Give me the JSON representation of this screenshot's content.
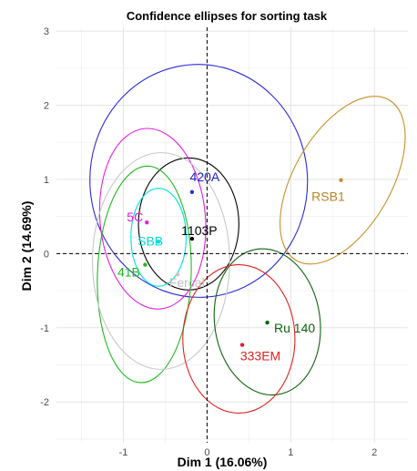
{
  "chart_data": {
    "type": "scatter",
    "title": "Confidence ellipses for sorting task",
    "xlabel": "Dim 1 (16.06%)",
    "ylabel": "Dim 2 (14.69%)",
    "xlim": [
      -1.8,
      2.4
    ],
    "ylim": [
      -2.55,
      3.05
    ],
    "xticks": [
      -1,
      0,
      1,
      2
    ],
    "yticks": [
      -2,
      -1,
      0,
      1,
      2,
      3
    ],
    "xtick_labels": [
      "-1",
      "0",
      "1",
      "2"
    ],
    "ytick_labels": [
      "-2",
      "-1",
      "0",
      "1",
      "2",
      "3"
    ],
    "grid": true,
    "reference_lines": {
      "x": 0,
      "y": 0,
      "style": "dashed"
    },
    "series": [
      {
        "name": "420A",
        "color": "#2b2bd6",
        "label_color": "#2020c0",
        "x": -0.18,
        "y": 0.83,
        "ellipse": {
          "cx": -0.1,
          "cy": 0.98,
          "rx": 1.3,
          "ry": 1.57,
          "rotation": -3
        }
      },
      {
        "name": "1103P",
        "color": "#000000",
        "label_color": "#000000",
        "x": -0.18,
        "y": 0.2,
        "ellipse": {
          "cx": -0.22,
          "cy": 0.4,
          "rx": 0.6,
          "ry": 0.89,
          "rotation": 0
        }
      },
      {
        "name": "5C",
        "color": "#e020e0",
        "label_color": "#e020e0",
        "x": -0.72,
        "y": 0.42,
        "ellipse": {
          "cx": -0.65,
          "cy": 0.47,
          "rx": 0.63,
          "ry": 1.22,
          "rotation": -5
        }
      },
      {
        "name": "SBB",
        "color": "#00e0e0",
        "label_color": "#00d8d8",
        "x": -0.58,
        "y": 0.16,
        "ellipse": {
          "cx": -0.58,
          "cy": 0.22,
          "rx": 0.33,
          "ry": 0.66,
          "rotation": 0
        }
      },
      {
        "name": "41B",
        "color": "#22b822",
        "label_color": "#22b822",
        "x": -0.74,
        "y": -0.15,
        "ellipse": {
          "cx": -0.75,
          "cy": -0.28,
          "rx": 0.56,
          "ry": 1.46,
          "rotation": 2
        }
      },
      {
        "name": "Fercal",
        "color": "#c8c8c8",
        "label_color": "#c0c0c0",
        "x": -0.35,
        "y": -0.28,
        "ellipse": {
          "cx": -0.55,
          "cy": -0.1,
          "rx": 0.82,
          "ry": 1.46,
          "rotation": 0
        }
      },
      {
        "name": "RSB1",
        "color": "#c8902a",
        "label_color": "#b8862a",
        "x": 1.6,
        "y": 0.99,
        "ellipse": {
          "cx": 1.62,
          "cy": 0.99,
          "rx": 0.58,
          "ry": 1.25,
          "rotation": 30
        }
      },
      {
        "name": "Ru 140",
        "color": "#106410",
        "label_color": "#106410",
        "x": 0.72,
        "y": -0.93,
        "ellipse": {
          "cx": 0.72,
          "cy": -0.92,
          "rx": 0.63,
          "ry": 0.99,
          "rotation": -8
        }
      },
      {
        "name": "333EM",
        "color": "#e02020",
        "label_color": "#e02020",
        "x": 0.42,
        "y": -1.23,
        "ellipse": {
          "cx": 0.38,
          "cy": -1.15,
          "rx": 0.67,
          "ry": 1.0,
          "rotation": 0
        }
      }
    ]
  }
}
